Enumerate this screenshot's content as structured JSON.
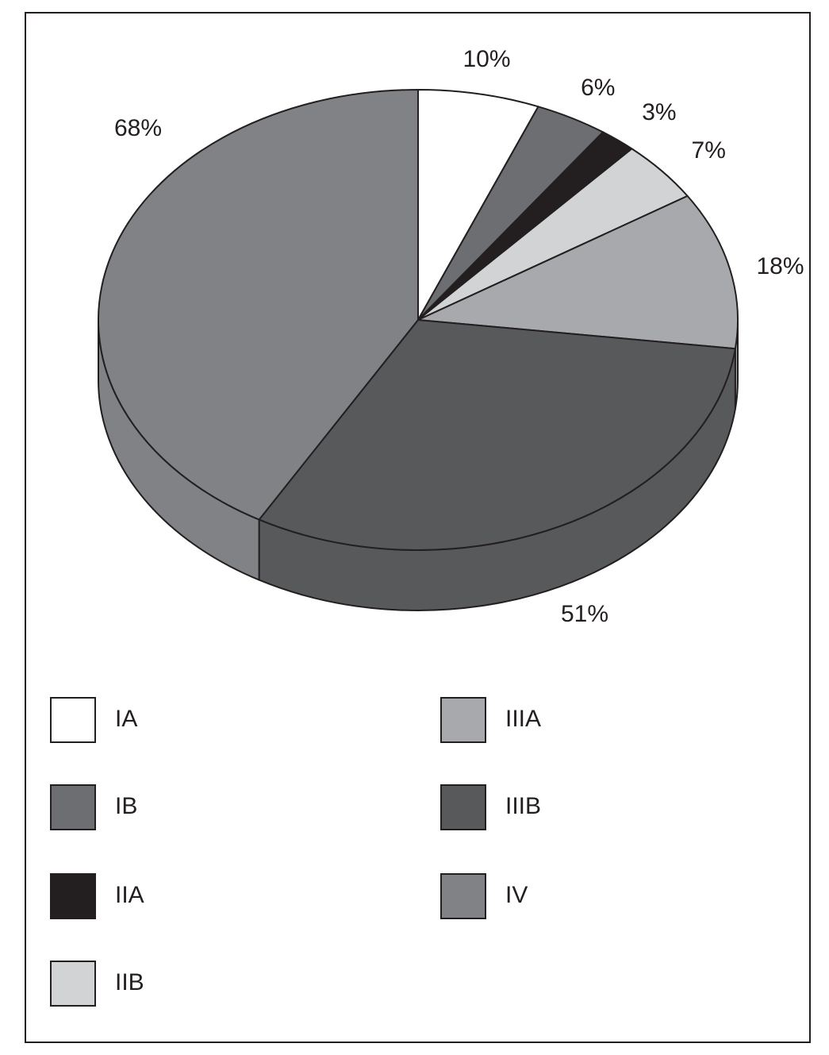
{
  "chart_data": {
    "type": "pie",
    "style": "3d",
    "title": "",
    "categories": [
      "IA",
      "IB",
      "IIA",
      "IIB",
      "IIIA",
      "IIIB",
      "IV"
    ],
    "values": [
      10,
      6,
      3,
      7,
      18,
      51,
      68
    ],
    "data_labels": [
      "10%",
      "6%",
      "3%",
      "7%",
      "18%",
      "51%",
      "68%"
    ],
    "colors": [
      "#ffffff",
      "#6d6e71",
      "#231f20",
      "#d1d3d4",
      "#a7a9ac",
      "#58595b",
      "#808285"
    ],
    "legend_placement": "bottom",
    "legend": [
      {
        "label": "IA",
        "color": "#ffffff"
      },
      {
        "label": "IB",
        "color": "#6d6e71"
      },
      {
        "label": "IIA",
        "color": "#231f20"
      },
      {
        "label": "IIB",
        "color": "#d1d3d4"
      },
      {
        "label": "IIIA",
        "color": "#a7a9ac"
      },
      {
        "label": "IIIB",
        "color": "#58595b"
      },
      {
        "label": "IV",
        "color": "#808285"
      }
    ]
  }
}
